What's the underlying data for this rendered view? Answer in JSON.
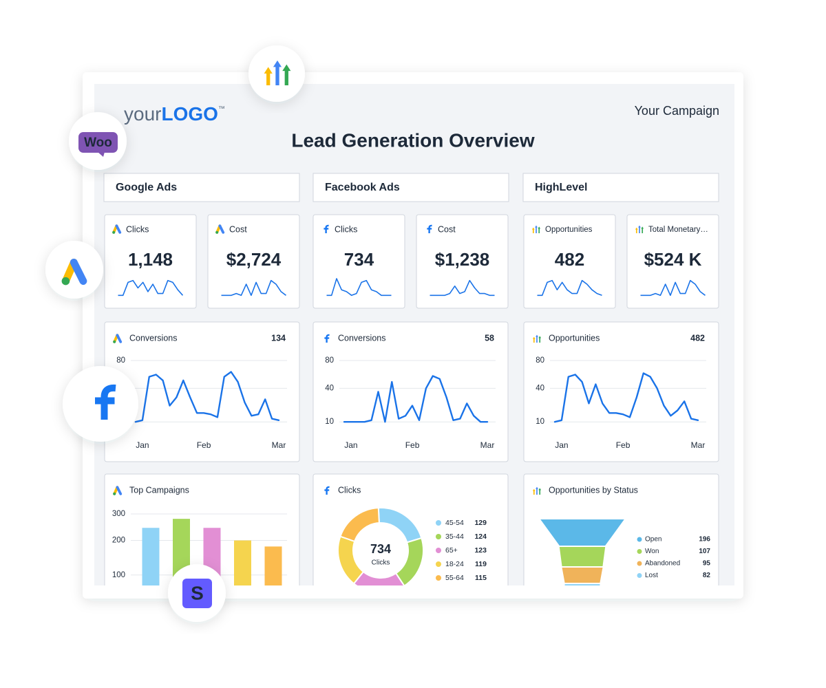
{
  "header": {
    "logo_prefix": "your",
    "logo_brand": "LOGO",
    "logo_mark": "™",
    "campaign": "Your Campaign",
    "title": "Lead Generation Overview"
  },
  "icons": {
    "woo": "Woo",
    "stripe": "S"
  },
  "sections": [
    "Google Ads",
    "Facebook Ads",
    "HighLevel"
  ],
  "kpis": [
    {
      "source": "google",
      "label": "Clicks",
      "value": "1,148",
      "sparkline": [
        1,
        1,
        8,
        9,
        5,
        8,
        3,
        7,
        2,
        2,
        9,
        8,
        4,
        1
      ]
    },
    {
      "source": "google",
      "label": "Cost",
      "value": "$2,724",
      "sparkline": [
        1,
        1,
        1,
        2,
        1,
        7,
        1,
        8,
        2,
        2,
        9,
        7,
        3,
        1
      ]
    },
    {
      "source": "facebook",
      "label": "Clicks",
      "value": "734",
      "sparkline": [
        1,
        1,
        10,
        4,
        3,
        1,
        2,
        8,
        9,
        4,
        3,
        1,
        1,
        1
      ]
    },
    {
      "source": "facebook",
      "label": "Cost",
      "value": "$1,238",
      "sparkline": [
        1,
        1,
        1,
        1,
        2,
        6,
        2,
        3,
        9,
        5,
        2,
        2,
        1,
        1
      ]
    },
    {
      "source": "highlevel",
      "label": "Opportunities",
      "value": "482",
      "sparkline": [
        1,
        1,
        8,
        9,
        4,
        8,
        4,
        2,
        2,
        9,
        7,
        4,
        2,
        1
      ]
    },
    {
      "source": "highlevel",
      "label": "Total Monetary…",
      "value": "$524 K",
      "sparkline": [
        1,
        1,
        1,
        2,
        1,
        7,
        1,
        8,
        2,
        2,
        9,
        7,
        3,
        1
      ]
    }
  ],
  "chart_data": [
    {
      "type": "line",
      "source": "google",
      "title": "Conversions",
      "total": 134,
      "categories": [
        null,
        "Jan",
        null,
        null,
        null,
        null,
        null,
        null,
        null,
        null,
        "Feb",
        null,
        null,
        null,
        null,
        null,
        null,
        null,
        null,
        null,
        null,
        "Mar"
      ],
      "values": [
        10,
        11,
        55,
        58,
        50,
        22,
        30,
        50,
        30,
        16,
        16,
        15,
        13,
        55,
        62,
        48,
        25,
        14,
        15,
        28,
        12,
        11
      ],
      "color": "#1a73e8",
      "ylim": [
        0,
        80
      ],
      "yticks": [
        10,
        40,
        80
      ],
      "yscale": "sqrt",
      "grid": true
    },
    {
      "type": "line",
      "source": "facebook",
      "title": "Conversions",
      "total": 58,
      "categories": [
        null,
        "Jan",
        null,
        null,
        null,
        null,
        null,
        null,
        null,
        null,
        "Feb",
        null,
        null,
        null,
        null,
        null,
        null,
        null,
        null,
        null,
        null,
        "Mar"
      ],
      "values": [
        10,
        10,
        10,
        10,
        11,
        36,
        10,
        48,
        12,
        14,
        22,
        11,
        40,
        56,
        52,
        30,
        11,
        12,
        24,
        14,
        10,
        10
      ],
      "color": "#1a73e8",
      "ylim": [
        0,
        80
      ],
      "yticks": [
        10,
        40,
        80
      ],
      "yscale": "sqrt",
      "grid": true
    },
    {
      "type": "line",
      "source": "highlevel",
      "title": "Opportunities",
      "total": 482,
      "categories": [
        null,
        "Jan",
        null,
        null,
        null,
        null,
        null,
        null,
        null,
        null,
        "Feb",
        null,
        null,
        null,
        null,
        null,
        null,
        null,
        null,
        null,
        null,
        "Mar"
      ],
      "values": [
        10,
        11,
        55,
        58,
        48,
        24,
        45,
        24,
        16,
        16,
        15,
        13,
        30,
        60,
        55,
        40,
        22,
        14,
        18,
        26,
        12,
        11
      ],
      "color": "#1a73e8",
      "ylim": [
        0,
        80
      ],
      "yticks": [
        10,
        40,
        80
      ],
      "yscale": "sqrt",
      "grid": true
    },
    {
      "type": "bar",
      "source": "google",
      "title": "Top Campaigns",
      "categories": [
        null,
        null,
        null,
        null,
        null
      ],
      "values": [
        245,
        280,
        245,
        200,
        180
      ],
      "colors": [
        "#8fd3f6",
        "#a5d65a",
        "#e28fd4",
        "#f5d44e",
        "#fbbb4e"
      ],
      "ylim": [
        0,
        300
      ],
      "yticks": [
        100,
        200,
        300
      ],
      "yscale": "sqrt",
      "grid": true
    },
    {
      "type": "donut",
      "source": "facebook",
      "title": "Clicks",
      "center_value": 734,
      "center_label": "Clicks",
      "categories": [
        "45-54",
        "35-44",
        "65+",
        "18-24",
        "55-64"
      ],
      "values": [
        129,
        124,
        123,
        119,
        115
      ],
      "colors": [
        "#8fd3f6",
        "#a5d65a",
        "#e28fd4",
        "#f5d44e",
        "#fbbb4e"
      ]
    },
    {
      "type": "funnel",
      "source": "highlevel",
      "title": "Opportunities by Status",
      "categories": [
        "Open",
        "Won",
        "Abandoned",
        "Lost"
      ],
      "values": [
        196,
        107,
        95,
        82
      ],
      "colors": [
        "#5bb8e8",
        "#a5d65a",
        "#f0b35a",
        "#8fd3f6"
      ]
    }
  ]
}
